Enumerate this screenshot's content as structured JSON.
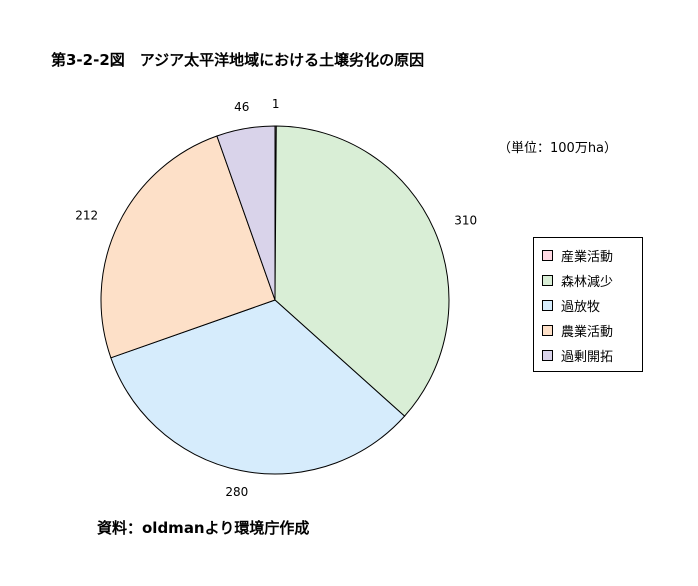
{
  "title": "第3-2-2図　アジア太平洋地域における土壌劣化の原因",
  "unit": "（単位：100万ha）",
  "source": "資料：oldmanより環境庁作成",
  "chart_data": {
    "type": "pie",
    "categories": [
      "産業活動",
      "森林減少",
      "過放牧",
      "農業活動",
      "過剰開拓"
    ],
    "values": [
      1,
      310,
      280,
      212,
      46
    ],
    "colors": [
      "#ffd9e3",
      "#d9eed6",
      "#d6ecfc",
      "#fde0c8",
      "#d9d3ea"
    ],
    "start": "12 o'clock",
    "direction": "clockwise",
    "legend": "right"
  }
}
